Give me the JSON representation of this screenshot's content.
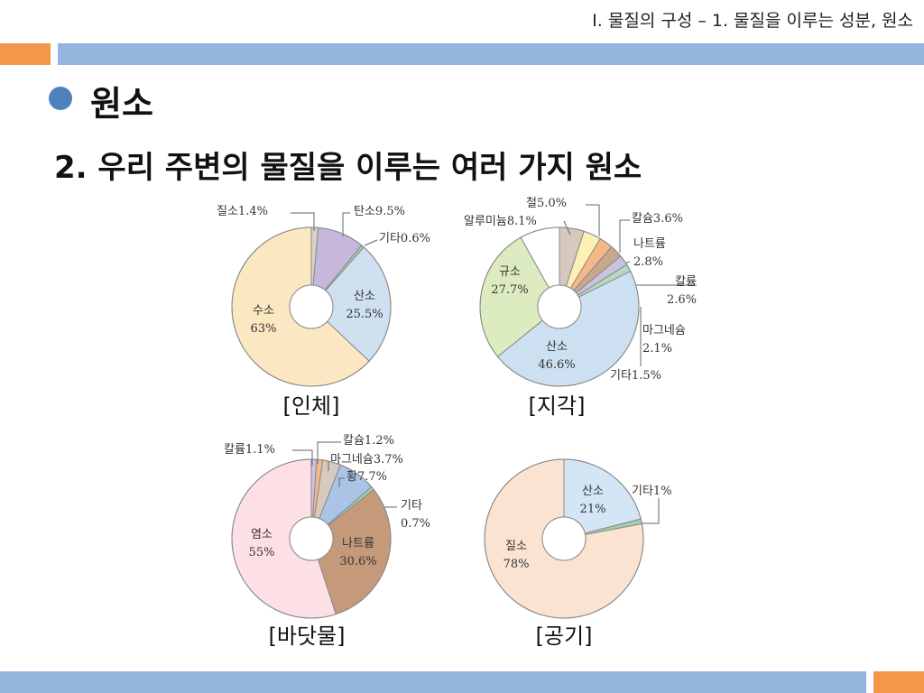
{
  "header": {
    "breadcrumb": "Ⅰ. 물질의 구성 – 1. 물질을 이루는 성분, 원소"
  },
  "section": {
    "title": "원소"
  },
  "subtitle": "2. 우리 주변의 물질을 이루는 여러 가지 원소",
  "colors": {
    "accent_blue": "#95b5de",
    "accent_orange": "#f4974b",
    "bullet": "#4f81bd"
  },
  "chart_data": [
    {
      "type": "pie",
      "title": "[인체]",
      "slices": [
        {
          "label": "질소1.4%",
          "value": 1.4,
          "color": "#d9d2c3"
        },
        {
          "label": "탄소9.5%",
          "value": 9.5,
          "color": "#c6b8dc"
        },
        {
          "label": "기타0.6%",
          "value": 0.6,
          "color": "#9fd0b0"
        },
        {
          "label": "산소 25.5%",
          "value": 25.5,
          "color": "#cfe0f1"
        },
        {
          "label": "수소 63%",
          "value": 63,
          "color": "#fbe7c2"
        }
      ]
    },
    {
      "type": "pie",
      "title": "[지각]",
      "slices": [
        {
          "label": "철5.0%",
          "value": 5.0,
          "color": "#d6c9bd"
        },
        {
          "label": "칼슘3.6%",
          "value": 3.6,
          "color": "#fdf0b5"
        },
        {
          "label": "나트륨 2.8%",
          "value": 2.8,
          "color": "#f7b887"
        },
        {
          "label": "칼륨 2.6%",
          "value": 2.6,
          "color": "#c7a88a"
        },
        {
          "label": "마그네슘 2.1%",
          "value": 2.1,
          "color": "#c9c3e0"
        },
        {
          "label": "기타1.5%",
          "value": 1.5,
          "color": "#b9d8c2"
        },
        {
          "label": "산소 46.6%",
          "value": 46.6,
          "color": "#cde0f2"
        },
        {
          "label": "규소 27.7%",
          "value": 27.7,
          "color": "#dcebc0"
        },
        {
          "label": "알루미늄8.1%",
          "value": 8.1,
          "color": "#ffffff"
        }
      ]
    },
    {
      "type": "pie",
      "title": "[바닷물]",
      "slices": [
        {
          "label": "칼륨1.1%",
          "value": 1.1,
          "color": "#c9c3e0"
        },
        {
          "label": "칼슘1.2%",
          "value": 1.2,
          "color": "#f7b887"
        },
        {
          "label": "마그네슘3.7%",
          "value": 3.7,
          "color": "#d6c9bd"
        },
        {
          "label": "황7.7%",
          "value": 7.7,
          "color": "#a9c4e6"
        },
        {
          "label": "기타 0.7%",
          "value": 0.7,
          "color": "#9fd0b0"
        },
        {
          "label": "나트륨 30.6%",
          "value": 30.6,
          "color": "#c49a7a"
        },
        {
          "label": "염소 55%",
          "value": 55,
          "color": "#fde0e6"
        }
      ]
    },
    {
      "type": "pie",
      "title": "[공기]",
      "slices": [
        {
          "label": "산소 21%",
          "value": 21,
          "color": "#d4e5f6"
        },
        {
          "label": "기타1%",
          "value": 1,
          "color": "#9fd0b0"
        },
        {
          "label": "질소 78%",
          "value": 78,
          "color": "#fbe3d2"
        }
      ]
    }
  ]
}
